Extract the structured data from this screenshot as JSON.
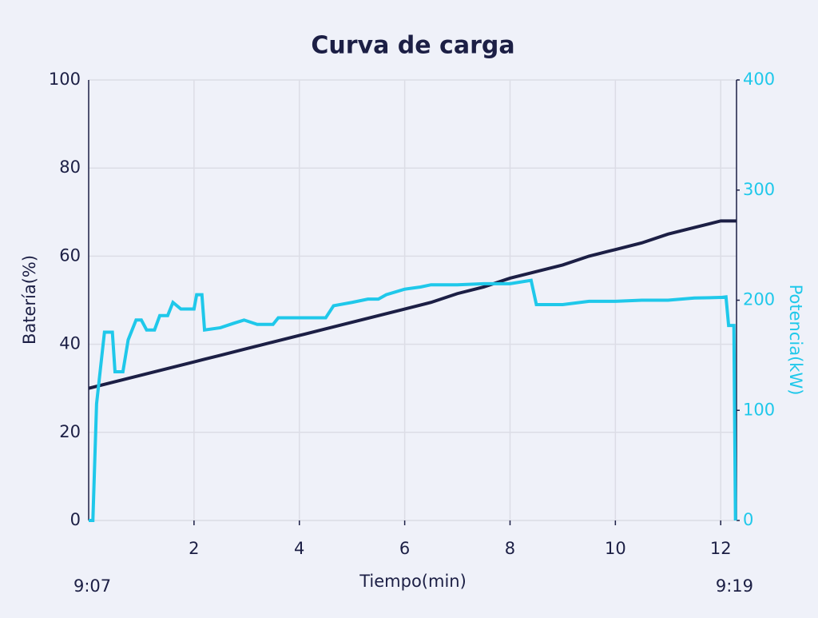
{
  "chart_data": {
    "type": "line",
    "title": "Curva de carga",
    "x_label": "Tiempo(min)",
    "y_label": "Batería(%)",
    "y2_label": "Potencia(kW)",
    "annotations": [
      "9:07",
      "9:19"
    ],
    "xlim": [
      0,
      12.3
    ],
    "xticks": [
      2,
      4,
      6,
      8,
      10,
      12
    ],
    "ylim": [
      0,
      100
    ],
    "yticks": [
      0,
      20,
      40,
      60,
      80,
      100
    ],
    "y2lim": [
      0,
      400
    ],
    "y2ticks": [
      0,
      100,
      200,
      300,
      400
    ],
    "grid": true,
    "series": [
      {
        "name": "Batería",
        "color": "#1c1f45",
        "x": [
          0,
          0.5,
          1,
          1.5,
          2,
          2.5,
          3,
          3.5,
          4,
          4.5,
          5,
          5.5,
          6,
          6.5,
          7,
          7.5,
          8,
          8.5,
          9,
          9.5,
          10,
          10.5,
          11,
          11.5,
          12,
          12.3
        ],
        "values": [
          30,
          31.5,
          33,
          34.5,
          36,
          37.5,
          39,
          40.5,
          42,
          43.5,
          45,
          46.5,
          48,
          49.5,
          51.5,
          53,
          55,
          56.5,
          58,
          60,
          61.5,
          63,
          65,
          66.5,
          68,
          68
        ]
      },
      {
        "name": "Potencia",
        "color": "#1fc8ea",
        "axis": "y2",
        "x": [
          0,
          0.08,
          0.15,
          0.3,
          0.45,
          0.5,
          0.65,
          0.75,
          0.9,
          1.0,
          1.1,
          1.25,
          1.35,
          1.5,
          1.6,
          1.75,
          2.0,
          2.05,
          2.15,
          2.2,
          2.5,
          2.75,
          2.95,
          3.2,
          3.5,
          3.6,
          4.0,
          4.2,
          4.5,
          4.65,
          5.0,
          5.3,
          5.5,
          5.65,
          6.0,
          6.3,
          6.5,
          7.0,
          7.5,
          8.0,
          8.4,
          8.5,
          9.0,
          9.5,
          10.0,
          10.5,
          11.0,
          11.5,
          12.0,
          12.1,
          12.15,
          12.25,
          12.28
        ],
        "values": [
          0,
          0,
          106,
          171,
          171,
          135,
          135,
          164,
          182,
          182,
          173,
          173,
          186,
          186,
          198,
          192,
          192,
          205,
          205,
          173,
          175,
          179,
          182,
          178,
          178,
          184,
          184,
          184,
          184,
          195,
          198,
          201,
          201,
          205,
          210,
          212,
          214,
          214,
          215,
          215,
          218,
          196,
          196,
          199,
          199,
          200,
          200,
          202,
          202.5,
          203,
          177,
          177,
          0
        ]
      }
    ]
  }
}
